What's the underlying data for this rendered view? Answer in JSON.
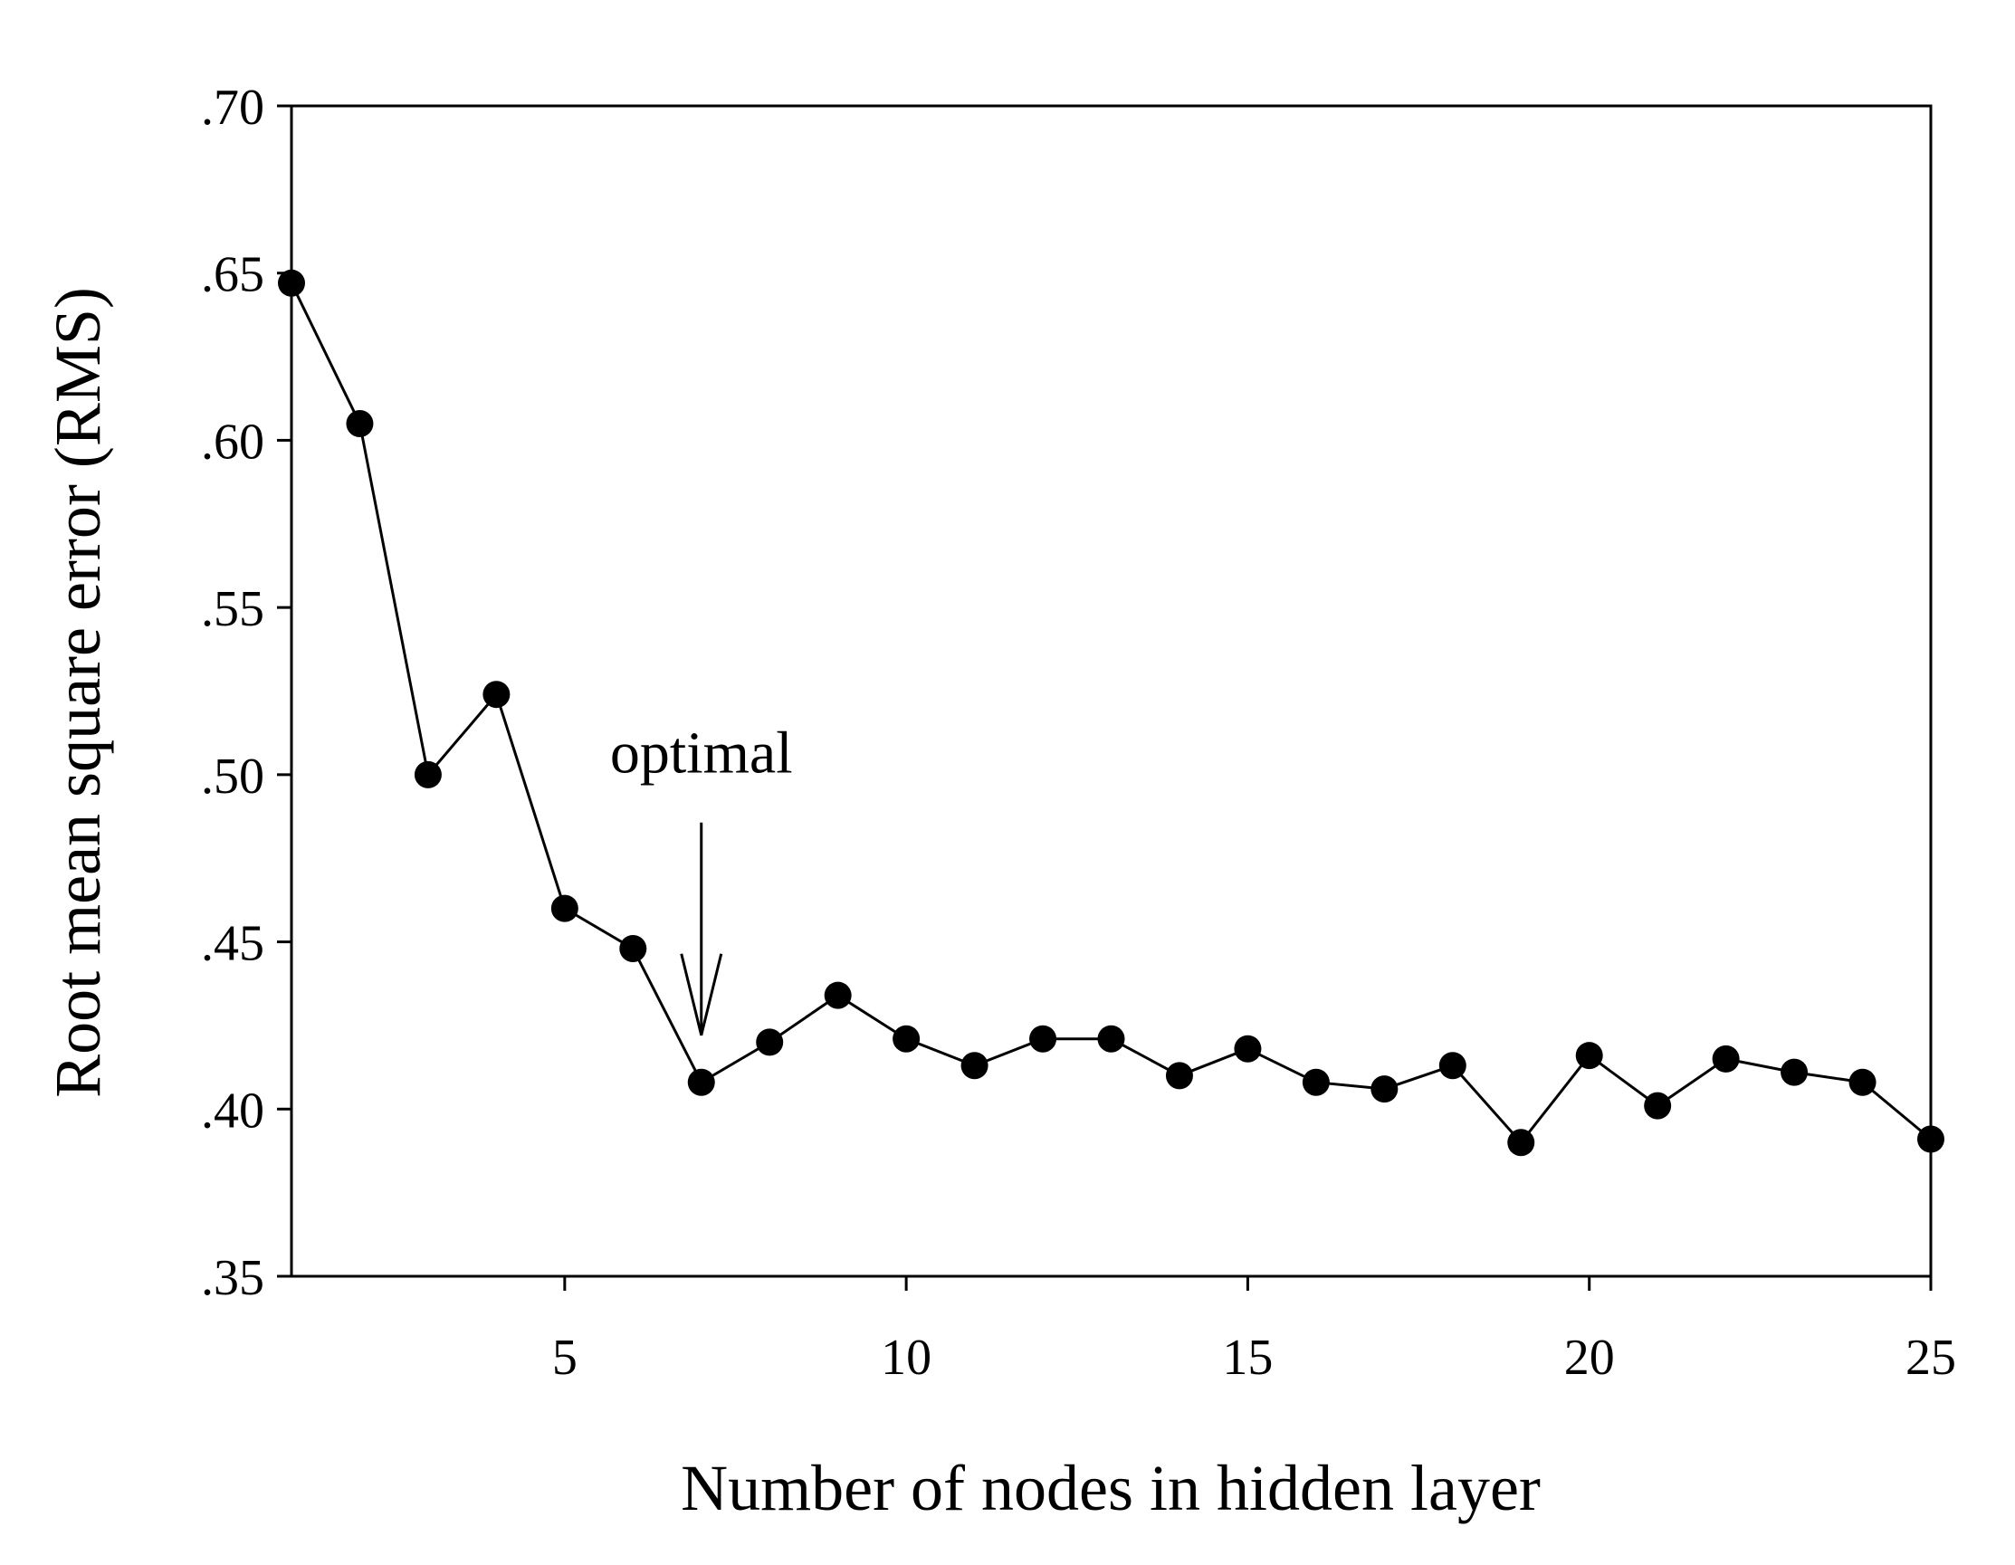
{
  "chart_data": {
    "type": "line",
    "title": "",
    "xlabel": "Number of nodes in hidden layer",
    "ylabel": "Root mean square error (RMS)",
    "xlim": [
      1,
      25
    ],
    "ylim": [
      0.35,
      0.7
    ],
    "x_ticks": [
      5,
      10,
      15,
      20,
      25
    ],
    "x_tick_labels": [
      "5",
      "10",
      "15",
      "20",
      "25"
    ],
    "y_ticks": [
      0.35,
      0.4,
      0.45,
      0.5,
      0.55,
      0.6,
      0.65,
      0.7
    ],
    "y_tick_labels": [
      ".35",
      ".40",
      ".45",
      ".50",
      ".55",
      ".60",
      ".65",
      ".70"
    ],
    "grid": false,
    "legend": "none",
    "series": [
      {
        "x": [
          1,
          2,
          3,
          4,
          5,
          6,
          7,
          8,
          9,
          10,
          11,
          12,
          13,
          14,
          15,
          16,
          17,
          18,
          19,
          20,
          21,
          22,
          23,
          24,
          25
        ],
        "values": [
          0.647,
          0.605,
          0.5,
          0.524,
          0.46,
          0.448,
          0.408,
          0.42,
          0.434,
          0.421,
          0.413,
          0.421,
          0.421,
          0.41,
          0.418,
          0.408,
          0.406,
          0.413,
          0.39,
          0.416,
          0.401,
          0.415,
          0.411,
          0.408,
          0.391
        ],
        "color": "#000000",
        "marker": "filled-circle"
      }
    ],
    "annotations": [
      {
        "text": "optimal",
        "x": 7,
        "y": 0.408,
        "marker": "down-arrow"
      }
    ]
  }
}
